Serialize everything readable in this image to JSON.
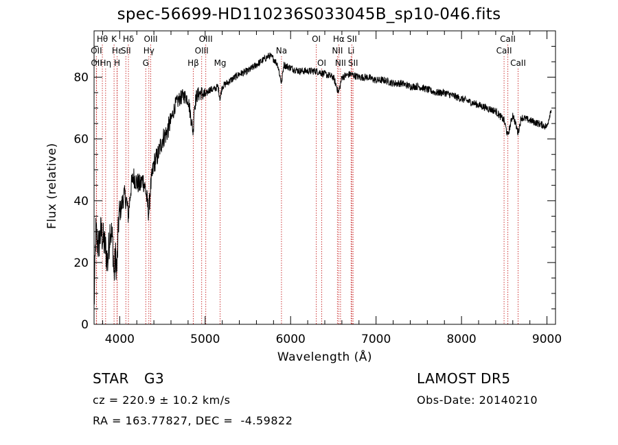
{
  "chart_data": {
    "type": "line",
    "title": "spec-56699-HD110236S033045B_sp10-046.fits",
    "xlabel": "Wavelength (Å)",
    "ylabel": "Flux (relative)",
    "xlim": [
      3700,
      9100
    ],
    "ylim": [
      0,
      95
    ],
    "xticks": [
      4000,
      5000,
      6000,
      7000,
      8000,
      9000
    ],
    "yticks": [
      0,
      20,
      40,
      60,
      80
    ],
    "grid": false,
    "legend": "none",
    "colors": {
      "spectrum": "#000000",
      "lines": "#cc3333",
      "axes": "#000000"
    },
    "spectrum_anchors": [
      [
        3700,
        5
      ],
      [
        3720,
        30
      ],
      [
        3750,
        25
      ],
      [
        3780,
        30
      ],
      [
        3800,
        28
      ],
      [
        3830,
        25
      ],
      [
        3860,
        20
      ],
      [
        3890,
        32
      ],
      [
        3920,
        26
      ],
      [
        3933,
        15
      ],
      [
        3950,
        22
      ],
      [
        3968,
        18
      ],
      [
        3990,
        35
      ],
      [
        4020,
        38
      ],
      [
        4050,
        42
      ],
      [
        4080,
        40
      ],
      [
        4101,
        35
      ],
      [
        4130,
        44
      ],
      [
        4160,
        48
      ],
      [
        4200,
        46
      ],
      [
        4240,
        45
      ],
      [
        4270,
        47
      ],
      [
        4300,
        44
      ],
      [
        4320,
        40
      ],
      [
        4340,
        36
      ],
      [
        4360,
        44
      ],
      [
        4400,
        52
      ],
      [
        4450,
        55
      ],
      [
        4500,
        60
      ],
      [
        4550,
        62
      ],
      [
        4600,
        66
      ],
      [
        4650,
        71
      ],
      [
        4700,
        73
      ],
      [
        4750,
        74
      ],
      [
        4800,
        73
      ],
      [
        4861,
        62
      ],
      [
        4870,
        70
      ],
      [
        4900,
        74
      ],
      [
        4950,
        75
      ],
      [
        5000,
        74
      ],
      [
        5050,
        76
      ],
      [
        5100,
        76
      ],
      [
        5150,
        77
      ],
      [
        5175,
        73
      ],
      [
        5200,
        77
      ],
      [
        5300,
        79
      ],
      [
        5400,
        81
      ],
      [
        5500,
        82
      ],
      [
        5600,
        84
      ],
      [
        5700,
        86
      ],
      [
        5750,
        87
      ],
      [
        5800,
        86
      ],
      [
        5850,
        84
      ],
      [
        5893,
        78
      ],
      [
        5920,
        84
      ],
      [
        6000,
        83
      ],
      [
        6100,
        82
      ],
      [
        6200,
        82
      ],
      [
        6300,
        82
      ],
      [
        6400,
        81
      ],
      [
        6500,
        80
      ],
      [
        6563,
        75
      ],
      [
        6600,
        80
      ],
      [
        6700,
        81
      ],
      [
        6800,
        80
      ],
      [
        6900,
        80
      ],
      [
        7000,
        79
      ],
      [
        7100,
        79
      ],
      [
        7200,
        78
      ],
      [
        7300,
        78
      ],
      [
        7400,
        77
      ],
      [
        7500,
        77
      ],
      [
        7600,
        76
      ],
      [
        7700,
        75
      ],
      [
        7800,
        75
      ],
      [
        7900,
        74
      ],
      [
        8000,
        73
      ],
      [
        8100,
        72
      ],
      [
        8200,
        71
      ],
      [
        8300,
        70
      ],
      [
        8400,
        69
      ],
      [
        8498,
        66
      ],
      [
        8542,
        61
      ],
      [
        8600,
        68
      ],
      [
        8662,
        62
      ],
      [
        8700,
        67
      ],
      [
        8800,
        66
      ],
      [
        8900,
        65
      ],
      [
        9000,
        64
      ],
      [
        9050,
        70
      ]
    ],
    "annotations": [
      {
        "label": "Hθ",
        "wavelength": 3797,
        "row": 1
      },
      {
        "label": "OII",
        "wavelength": 3727,
        "row": 2
      },
      {
        "label": "OII",
        "wavelength": 3729,
        "row": 3
      },
      {
        "label": "Hη",
        "wavelength": 3835,
        "row": 3
      },
      {
        "label": "K",
        "wavelength": 3934,
        "row": 1
      },
      {
        "label": "Hε",
        "wavelength": 3970,
        "row": 2
      },
      {
        "label": "H",
        "wavelength": 3969,
        "row": 3
      },
      {
        "label": "Hδ",
        "wavelength": 4102,
        "row": 1
      },
      {
        "label": "SII",
        "wavelength": 4072,
        "row": 2
      },
      {
        "label": "OIII",
        "wavelength": 4363,
        "row": 1
      },
      {
        "label": "Hγ",
        "wavelength": 4341,
        "row": 2
      },
      {
        "label": "G",
        "wavelength": 4305,
        "row": 3
      },
      {
        "label": "OIII",
        "wavelength": 5007,
        "row": 1
      },
      {
        "label": "OIII",
        "wavelength": 4959,
        "row": 2
      },
      {
        "label": "Hβ",
        "wavelength": 4861,
        "row": 3
      },
      {
        "label": "Mg",
        "wavelength": 5175,
        "row": 3
      },
      {
        "label": "Na",
        "wavelength": 5893,
        "row": 2
      },
      {
        "label": "OI",
        "wavelength": 6300,
        "row": 1
      },
      {
        "label": "OI",
        "wavelength": 6364,
        "row": 3
      },
      {
        "label": "Hα",
        "wavelength": 6563,
        "row": 1
      },
      {
        "label": "SII",
        "wavelength": 6717,
        "row": 1
      },
      {
        "label": "NII",
        "wavelength": 6548,
        "row": 2
      },
      {
        "label": "Li",
        "wavelength": 6708,
        "row": 2
      },
      {
        "label": "NII",
        "wavelength": 6584,
        "row": 3
      },
      {
        "label": "SII",
        "wavelength": 6731,
        "row": 3
      },
      {
        "label": "CaII",
        "wavelength": 8542,
        "row": 1
      },
      {
        "label": "CaII",
        "wavelength": 8498,
        "row": 2
      },
      {
        "label": "CaII",
        "wavelength": 8662,
        "row": 3
      }
    ]
  },
  "info": {
    "object_class": "STAR",
    "subclass": "G3",
    "survey": "LAMOST DR5",
    "cz": "cz = 220.9 ± 10.2 km/s",
    "obs_date": "Obs-Date: 20140210",
    "coords": "RA = 163.77827, DEC =  -4.59822"
  }
}
